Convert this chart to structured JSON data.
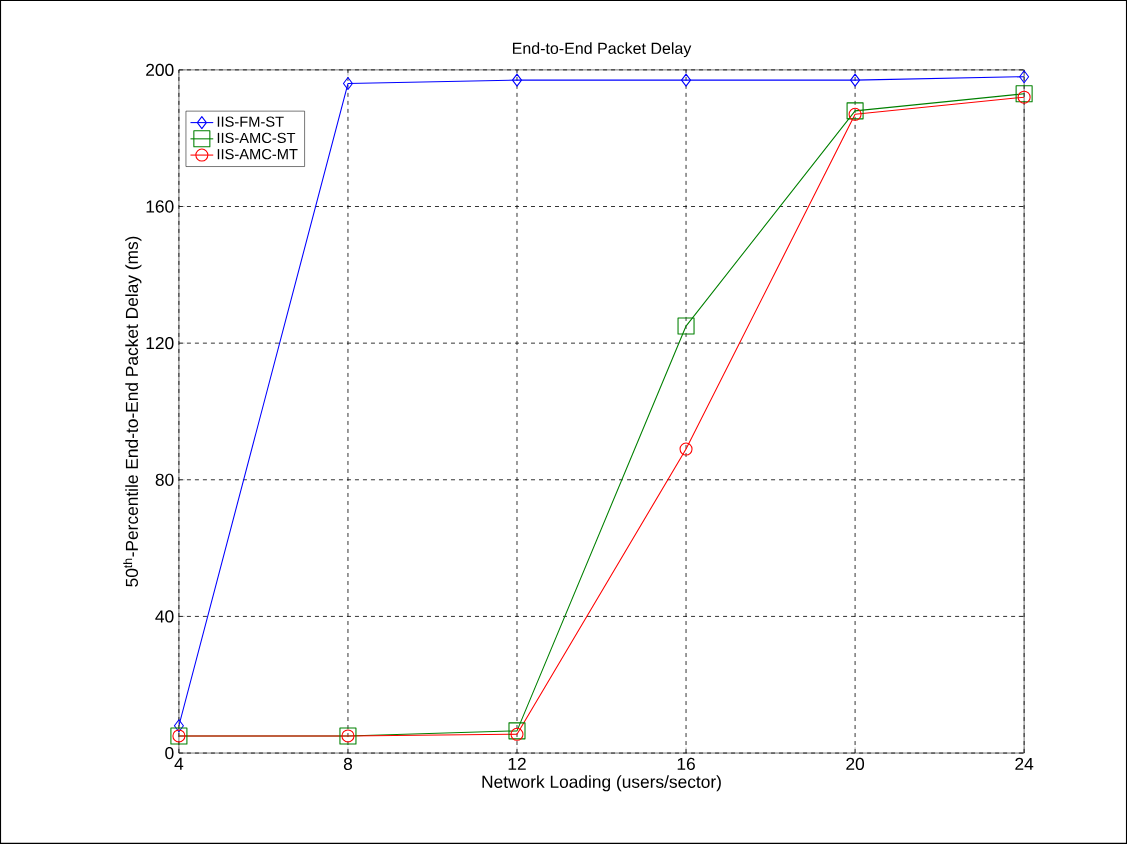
{
  "chart_data": {
    "type": "line",
    "title": "End-to-End Packet Delay",
    "xlabel": "Network Loading (users/sector)",
    "ylabel": "50$^{th}$-Percentile End-to-End Packet Delay (ms)",
    "x": [
      4,
      8,
      12,
      16,
      20,
      24
    ],
    "series": [
      {
        "name": "IIS-FM-ST",
        "color": "#0000ff",
        "marker": "diamond",
        "values": [
          8,
          196,
          197,
          197,
          197,
          198
        ]
      },
      {
        "name": "IIS-AMC-ST",
        "color": "#008000",
        "marker": "square",
        "values": [
          5,
          5,
          6.5,
          125,
          188,
          193
        ]
      },
      {
        "name": "IIS-AMC-MT",
        "color": "#ff0000",
        "marker": "circle",
        "values": [
          5,
          5,
          5.5,
          89,
          187,
          192
        ]
      }
    ],
    "xlim": [
      4,
      24
    ],
    "ylim": [
      0,
      200
    ],
    "xticks": [
      4,
      8,
      12,
      16,
      20,
      24
    ],
    "yticks": [
      0,
      40,
      80,
      120,
      160,
      200
    ],
    "grid": true,
    "legend": "top left",
    "line_style": "solid"
  }
}
